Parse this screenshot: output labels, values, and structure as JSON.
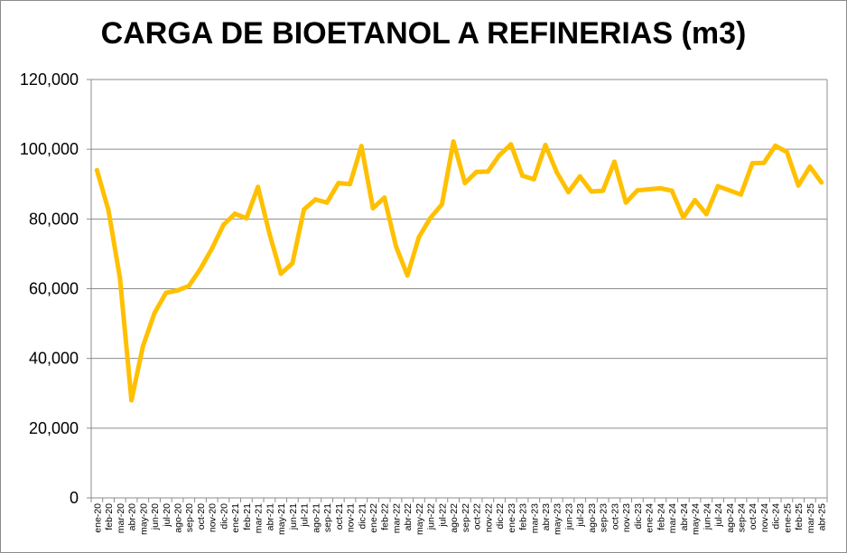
{
  "chart_data": {
    "type": "line",
    "title": "CARGA DE BIOETANOL A REFINERIAS (m3)",
    "xlabel": "",
    "ylabel": "",
    "ylim": [
      0,
      120000
    ],
    "yticks": [
      0,
      20000,
      40000,
      60000,
      80000,
      100000,
      120000
    ],
    "ytick_labels": [
      "0",
      "20,000",
      "40,000",
      "60,000",
      "80,000",
      "100,000",
      "120,000"
    ],
    "grid": "horizontal",
    "legend": "none",
    "series_color": "#FFC000",
    "categories": [
      "ene-20",
      "feb-20",
      "mar-20",
      "abr-20",
      "may-20",
      "jun-20",
      "jul-20",
      "ago-20",
      "sep-20",
      "oct-20",
      "nov-20",
      "dic-20",
      "ene-21",
      "feb-21",
      "mar-21",
      "abr-21",
      "may-21",
      "jun-21",
      "jul-21",
      "ago-21",
      "sep-21",
      "oct-21",
      "nov-21",
      "dic-21",
      "ene-22",
      "feb-22",
      "mar-22",
      "abr-22",
      "may-22",
      "jun-22",
      "jul-22",
      "ago-22",
      "sep-22",
      "oct-22",
      "nov-22",
      "dic-22",
      "ene-23",
      "feb-23",
      "mar-23",
      "abr-23",
      "may-23",
      "jun-23",
      "jul-23",
      "ago-23",
      "sep-23",
      "oct-23",
      "nov-23",
      "dic-23",
      "ene-24",
      "feb-24",
      "mar-24",
      "abr-24",
      "may-24",
      "jun-24",
      "jul-24",
      "ago-24",
      "sep-24",
      "oct-24",
      "nov-24",
      "dic-24",
      "ene-25",
      "feb-25",
      "mar-25",
      "abr-25"
    ],
    "series": [
      {
        "values": [
          94000,
          82500,
          63000,
          28000,
          43500,
          53000,
          58800,
          59500,
          60800,
          65700,
          71500,
          78300,
          81500,
          80200,
          89200,
          75800,
          64300,
          67300,
          82700,
          85600,
          84700,
          90300,
          90000,
          100900,
          83100,
          86100,
          72200,
          63800,
          74800,
          80300,
          84200,
          102200,
          90300,
          93500,
          93600,
          98300,
          101400,
          92400,
          91400,
          101200,
          93300,
          87700,
          92200,
          87900,
          88100,
          96400,
          84700,
          88200,
          88500,
          88800,
          88100,
          80400,
          85400,
          81400,
          89400,
          88200,
          87000,
          96000,
          96100,
          101000,
          99200,
          89600,
          95000,
          90500
        ]
      }
    ]
  }
}
